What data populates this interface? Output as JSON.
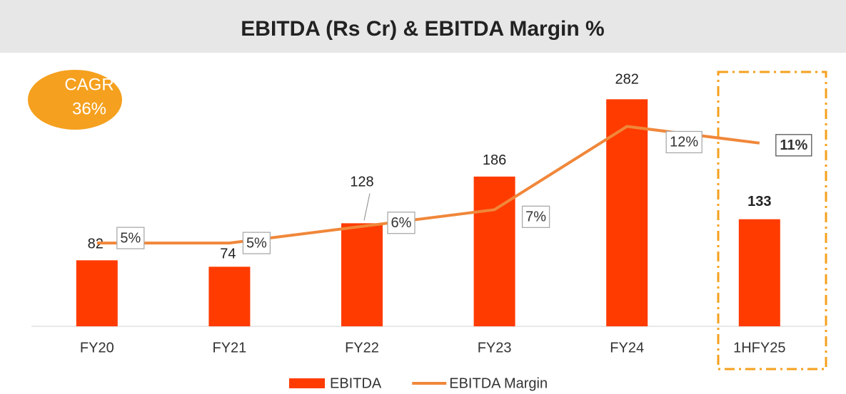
{
  "chart_data": {
    "type": "bar",
    "title": "EBITDA (Rs Cr) & EBITDA Margin %",
    "annotations": [
      "CAGR",
      "36%"
    ],
    "categories": [
      "FY20",
      "FY21",
      "FY22",
      "FY23",
      "FY24",
      "1HFY25"
    ],
    "series": [
      {
        "name": "EBITDA",
        "type": "bar",
        "color": "#ff3b00",
        "values": [
          82,
          74,
          128,
          186,
          282,
          133
        ]
      },
      {
        "name": "EBITDA Margin",
        "type": "line",
        "axis": "y2",
        "color": "#f0873a",
        "values": [
          5,
          5,
          6,
          7,
          12,
          11
        ],
        "value_labels": [
          "5%",
          "5%",
          "6%",
          "7%",
          "12%",
          "11%"
        ]
      }
    ],
    "ylim": [
      0,
      300
    ],
    "y2lim": [
      0,
      14.5
    ],
    "legend": "bottom"
  }
}
